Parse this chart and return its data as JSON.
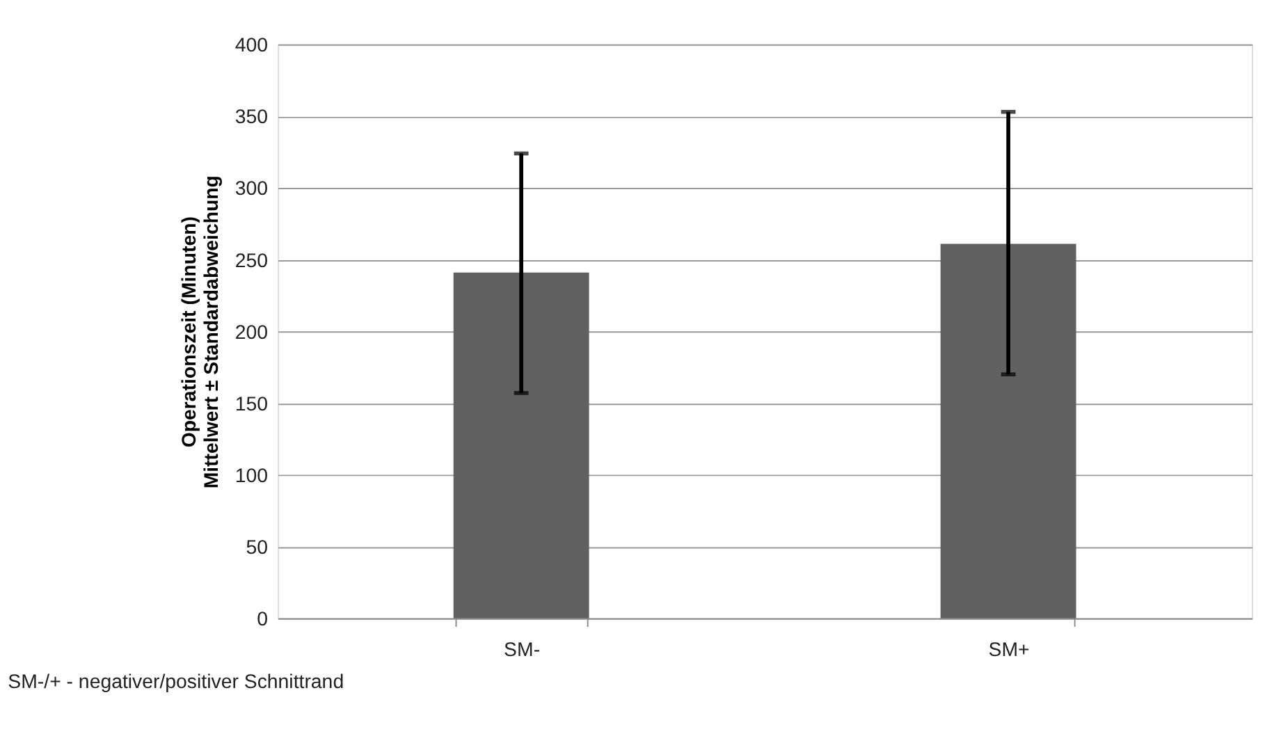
{
  "chart_data": {
    "type": "bar",
    "ylabel": "Operationszeit (Minuten)\nMittelwert  ± Standardabweichung",
    "categories": [
      "SM-",
      "SM+"
    ],
    "values": [
      241,
      261
    ],
    "errors": [
      [
        157,
        324
      ],
      [
        170,
        353
      ]
    ],
    "color": "#616161",
    "ylim": [
      0,
      400
    ],
    "yticks": [
      0,
      50,
      100,
      150,
      200,
      250,
      300,
      350,
      400
    ],
    "grid": "y",
    "annotations": [
      "SM-/+ - negativer/positiver Schnittrand"
    ]
  }
}
